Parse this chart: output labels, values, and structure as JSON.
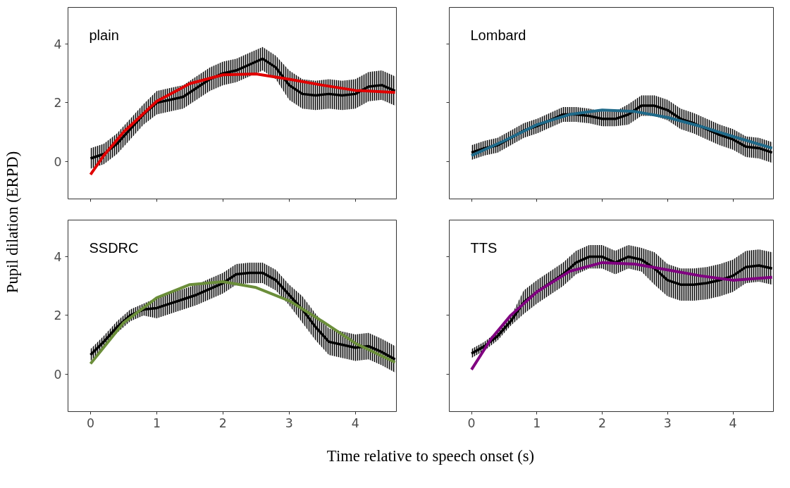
{
  "chart_data": [
    {
      "type": "line",
      "title": "plain",
      "ylabel": "Pupil dilation (ERPD)",
      "xlim": [
        -0.34,
        4.62
      ],
      "ylim": [
        -1.28,
        5.25
      ],
      "xticks": [
        0,
        1,
        2,
        3,
        4
      ],
      "yticks": [
        0,
        2,
        4
      ],
      "tick_labels": "y",
      "grid": false,
      "series": [
        {
          "type": "line",
          "color": "#000000",
          "x": [
            0,
            0.2,
            0.4,
            0.6,
            0.8,
            1.0,
            1.2,
            1.4,
            1.6,
            1.8,
            2.0,
            2.2,
            2.4,
            2.6,
            2.8,
            3.0,
            3.2,
            3.4,
            3.6,
            3.8,
            4.0,
            4.2,
            4.4,
            4.6
          ],
          "values": [
            0.1,
            0.25,
            0.6,
            1.1,
            1.6,
            2.0,
            2.1,
            2.2,
            2.5,
            2.8,
            3.0,
            3.1,
            3.3,
            3.5,
            3.2,
            2.6,
            2.3,
            2.25,
            2.3,
            2.25,
            2.3,
            2.55,
            2.6,
            2.4
          ],
          "lower": [
            -0.25,
            -0.1,
            0.25,
            0.75,
            1.25,
            1.6,
            1.7,
            1.8,
            2.1,
            2.4,
            2.6,
            2.7,
            2.9,
            3.1,
            2.8,
            2.1,
            1.8,
            1.75,
            1.8,
            1.75,
            1.8,
            2.05,
            2.1,
            1.9
          ],
          "upper": [
            0.45,
            0.6,
            0.95,
            1.45,
            1.95,
            2.4,
            2.5,
            2.6,
            2.9,
            3.2,
            3.4,
            3.5,
            3.7,
            3.9,
            3.6,
            3.1,
            2.8,
            2.75,
            2.8,
            2.75,
            2.8,
            3.05,
            3.1,
            2.9
          ]
        },
        {
          "type": "line",
          "color": "#e00000",
          "x": [
            0,
            0.2,
            0.5,
            1.0,
            1.5,
            2.0,
            2.5,
            3.0,
            3.5,
            4.0,
            4.6
          ],
          "values": [
            -0.45,
            0.2,
            1.0,
            2.05,
            2.65,
            2.95,
            2.98,
            2.8,
            2.6,
            2.42,
            2.35
          ]
        }
      ]
    },
    {
      "type": "line",
      "title": "Lombard",
      "xlim": [
        -0.34,
        4.62
      ],
      "ylim": [
        -1.28,
        5.25
      ],
      "xticks": [
        0,
        1,
        2,
        3,
        4
      ],
      "yticks": [
        0,
        2,
        4
      ],
      "tick_labels": false,
      "grid": false,
      "series": [
        {
          "type": "line",
          "color": "#000000",
          "x": [
            0,
            0.2,
            0.4,
            0.6,
            0.8,
            1.0,
            1.2,
            1.4,
            1.6,
            1.8,
            2.0,
            2.2,
            2.4,
            2.6,
            2.8,
            3.0,
            3.2,
            3.4,
            3.6,
            3.8,
            4.0,
            4.2,
            4.4,
            4.6
          ],
          "values": [
            0.3,
            0.45,
            0.55,
            0.8,
            1.05,
            1.2,
            1.4,
            1.6,
            1.6,
            1.55,
            1.45,
            1.45,
            1.6,
            1.9,
            1.9,
            1.75,
            1.45,
            1.3,
            1.1,
            0.9,
            0.75,
            0.5,
            0.45,
            0.3
          ],
          "lower": [
            0.05,
            0.2,
            0.3,
            0.55,
            0.8,
            0.95,
            1.15,
            1.35,
            1.35,
            1.3,
            1.2,
            1.2,
            1.25,
            1.55,
            1.55,
            1.4,
            1.1,
            0.95,
            0.75,
            0.55,
            0.4,
            0.15,
            0.1,
            -0.05
          ],
          "upper": [
            0.55,
            0.7,
            0.8,
            1.05,
            1.3,
            1.45,
            1.65,
            1.85,
            1.85,
            1.8,
            1.7,
            1.7,
            1.95,
            2.25,
            2.25,
            2.1,
            1.8,
            1.65,
            1.45,
            1.25,
            1.1,
            0.85,
            0.8,
            0.65
          ]
        },
        {
          "type": "line",
          "color": "#1f6a8a",
          "x": [
            0,
            0.5,
            1.0,
            1.5,
            2.0,
            2.5,
            3.0,
            3.5,
            4.0,
            4.6
          ],
          "values": [
            0.2,
            0.7,
            1.25,
            1.6,
            1.75,
            1.7,
            1.5,
            1.2,
            0.85,
            0.45
          ]
        }
      ]
    },
    {
      "type": "line",
      "title": "SSDRC",
      "xlabel": "Time relative to speech onset (s)",
      "xlim": [
        -0.34,
        4.62
      ],
      "ylim": [
        -1.28,
        5.25
      ],
      "xticks": [
        0,
        1,
        2,
        3,
        4
      ],
      "yticks": [
        0,
        2,
        4
      ],
      "grid": false,
      "series": [
        {
          "type": "line",
          "color": "#000000",
          "x": [
            0,
            0.2,
            0.4,
            0.6,
            0.8,
            1.0,
            1.2,
            1.4,
            1.6,
            1.8,
            2.0,
            2.2,
            2.4,
            2.6,
            2.8,
            3.0,
            3.2,
            3.4,
            3.6,
            3.8,
            4.0,
            4.2,
            4.4,
            4.6
          ],
          "values": [
            0.65,
            1.1,
            1.6,
            2.0,
            2.2,
            2.25,
            2.4,
            2.55,
            2.7,
            2.9,
            3.1,
            3.4,
            3.45,
            3.45,
            3.2,
            2.7,
            2.2,
            1.6,
            1.1,
            1.0,
            0.9,
            0.95,
            0.75,
            0.5
          ],
          "lower": [
            0.45,
            0.9,
            1.4,
            1.8,
            2.0,
            1.9,
            2.05,
            2.2,
            2.35,
            2.55,
            2.75,
            3.05,
            3.1,
            3.1,
            2.85,
            2.35,
            1.75,
            1.15,
            0.65,
            0.55,
            0.45,
            0.5,
            0.3,
            0.05
          ],
          "upper": [
            0.85,
            1.3,
            1.8,
            2.2,
            2.4,
            2.6,
            2.75,
            2.9,
            3.05,
            3.25,
            3.45,
            3.75,
            3.8,
            3.8,
            3.55,
            3.05,
            2.65,
            2.05,
            1.55,
            1.45,
            1.35,
            1.4,
            1.2,
            0.95
          ]
        },
        {
          "type": "line",
          "color": "#6b8e3a",
          "x": [
            0,
            0.5,
            1.0,
            1.5,
            2.0,
            2.5,
            3.0,
            3.5,
            4.0,
            4.6
          ],
          "values": [
            0.35,
            1.75,
            2.6,
            3.05,
            3.15,
            2.95,
            2.5,
            1.8,
            1.05,
            0.4
          ]
        }
      ]
    },
    {
      "type": "line",
      "title": "TTS",
      "xlim": [
        -0.34,
        4.62
      ],
      "ylim": [
        -1.28,
        5.25
      ],
      "xticks": [
        0,
        1,
        2,
        3,
        4
      ],
      "yticks": [
        0,
        2,
        4
      ],
      "tick_labels": "x",
      "grid": false,
      "series": [
        {
          "type": "line",
          "color": "#000000",
          "x": [
            0,
            0.2,
            0.4,
            0.6,
            0.8,
            1.0,
            1.2,
            1.4,
            1.6,
            1.8,
            2.0,
            2.2,
            2.4,
            2.6,
            2.8,
            3.0,
            3.2,
            3.4,
            3.6,
            3.8,
            4.0,
            4.2,
            4.4,
            4.6
          ],
          "values": [
            0.7,
            0.95,
            1.3,
            1.8,
            2.45,
            2.8,
            3.1,
            3.4,
            3.8,
            4.0,
            4.0,
            3.8,
            4.0,
            3.9,
            3.6,
            3.2,
            3.05,
            3.05,
            3.1,
            3.2,
            3.35,
            3.65,
            3.7,
            3.6
          ],
          "lower": [
            0.55,
            0.8,
            1.15,
            1.65,
            2.05,
            2.4,
            2.7,
            3.0,
            3.4,
            3.6,
            3.6,
            3.4,
            3.6,
            3.5,
            3.05,
            2.65,
            2.5,
            2.5,
            2.55,
            2.65,
            2.8,
            3.1,
            3.15,
            3.05
          ],
          "upper": [
            0.85,
            1.1,
            1.45,
            1.95,
            2.85,
            3.2,
            3.5,
            3.8,
            4.2,
            4.4,
            4.4,
            4.2,
            4.4,
            4.3,
            4.15,
            3.75,
            3.6,
            3.6,
            3.65,
            3.75,
            3.9,
            4.2,
            4.25,
            4.15
          ]
        },
        {
          "type": "line",
          "color": "#800080",
          "x": [
            0,
            0.3,
            0.6,
            1.0,
            1.5,
            2.0,
            2.5,
            3.0,
            3.5,
            4.0,
            4.6
          ],
          "values": [
            0.15,
            1.2,
            2.0,
            2.8,
            3.5,
            3.8,
            3.75,
            3.55,
            3.35,
            3.2,
            3.3
          ]
        }
      ]
    }
  ]
}
